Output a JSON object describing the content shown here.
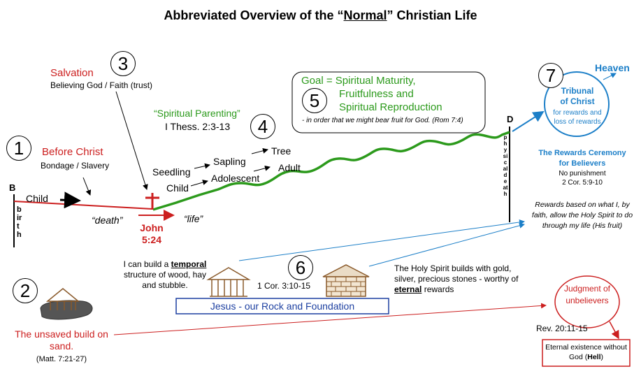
{
  "title_prefix": "Abbreviated Overview of the “",
  "title_emph": "Normal",
  "title_suffix": "” Christian Life",
  "salvation": {
    "label": "Salvation",
    "sub": "Believing God / Faith (trust)",
    "num": "3"
  },
  "before_christ": {
    "label": "Before Christ",
    "sub": "Bondage / Slavery",
    "num": "1"
  },
  "markers": {
    "b": "B",
    "d": "D"
  },
  "birth": "birth",
  "physical_death": "physical death",
  "child_left": "Child",
  "death_quote": "“death”",
  "life_quote": "“life”",
  "john_ref": "John 5:24",
  "parenting": {
    "label": "“Spiritual Parenting”",
    "ref": "I Thess. 2:3-13",
    "num": "4"
  },
  "growth": {
    "seedling": "Seedling",
    "sapling": "Sapling",
    "tree": "Tree",
    "child": "Child",
    "adolescent": "Adolescent",
    "adult": "Adult"
  },
  "goal": {
    "num": "5",
    "line1": "Goal = Spiritual Maturity,",
    "line2": "Fruitfulness  and",
    "line3": "Spiritual Reproduction",
    "note": "- in order that we might bear fruit for God. (Rom 7:4)"
  },
  "heaven": {
    "num": "7",
    "label": "Heaven"
  },
  "tribunal": {
    "title": "Tribunal of Christ",
    "sub": "for rewards and loss of  rewards"
  },
  "rewards": {
    "title": "The Rewards Ceremony for Believers",
    "sub1": "No punishment",
    "sub2": "2 Cor. 5:9-10",
    "note": "Rewards based on what I, by faith, allow the Holy Spirit to do through my life (His fruit)"
  },
  "building": {
    "num": "6",
    "temporal_pre": "I can build a ",
    "temporal_word": "temporal",
    "temporal_post": "structure of wood, hay and stubble.",
    "ref": "1 Cor. 3:10-15",
    "eternal_pre": "The Holy Spirit builds with gold, silver, precious stones - worthy of ",
    "eternal_word": "eternal",
    "eternal_post": " rewards",
    "foundation": "Jesus - our Rock and Foundation"
  },
  "unsaved": {
    "num": "2",
    "label": "The unsaved build on sand.",
    "ref": "(Matt. 7:21-27)"
  },
  "judgment": {
    "label": "Judgment of unbelievers",
    "ref": "Rev. 20:11-15",
    "hell_pre": "Eternal existence without God  (",
    "hell_word": "Hell",
    "hell_post": ")"
  },
  "colors": {
    "red": "#cc1f1f",
    "green": "#2c9a1c",
    "blue": "#1c7fc8"
  }
}
